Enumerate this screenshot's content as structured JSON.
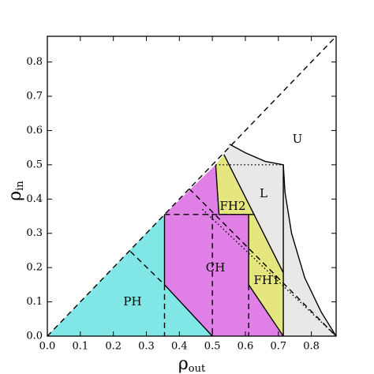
{
  "chart_data": {
    "type": "phase",
    "xlabel": {
      "symbol": "ρ",
      "sub": "out"
    },
    "ylabel": {
      "symbol": "ρ",
      "sub": "in"
    },
    "xlim": [
      0,
      0.875
    ],
    "ylim": [
      0,
      0.875
    ],
    "xticks": [
      {
        "value": 0,
        "label": "0.0"
      },
      0.1,
      0.2,
      0.3,
      0.4,
      0.5,
      0.6,
      0.7,
      0.8
    ],
    "yticks": [
      {
        "value": 0,
        "label": "0.0"
      },
      0.1,
      0.2,
      0.3,
      0.4,
      0.5,
      0.6,
      0.7,
      0.8
    ],
    "regions": [
      {
        "name": "L",
        "color": "#e8e8e8",
        "x": [
          0.535,
          0.552,
          0.6,
          0.66,
          0.715,
          0.72,
          0.74,
          0.78,
          0.83,
          0.875,
          0.715,
          0.715
        ],
        "y": [
          0.53,
          0.56,
          0.535,
          0.51,
          0.5,
          0.42,
          0.3,
          0.17,
          0.07,
          0,
          0,
          0.185
        ]
      },
      {
        "name": "PH",
        "color": "#80e6e6",
        "x": [
          0,
          0.355,
          0.355,
          0.5
        ],
        "y": [
          0,
          0.355,
          0.15,
          0
        ]
      },
      {
        "name": "CH",
        "color": "#e080e6",
        "x": [
          0.355,
          0.51,
          0.52,
          0.61,
          0.61,
          0.715,
          0.5,
          0.355
        ],
        "y": [
          0.355,
          0.5,
          0.355,
          0.355,
          0.15,
          0,
          0,
          0.15
        ]
      },
      {
        "name": "FH2",
        "color": "#e6e680",
        "x": [
          0.51,
          0.535,
          0.628,
          0.52
        ],
        "y": [
          0.5,
          0.53,
          0.355,
          0.355
        ]
      },
      {
        "name": "FH1",
        "color": "#e6e680",
        "x": [
          0.61,
          0.628,
          0.715,
          0.715,
          0.61
        ],
        "y": [
          0.355,
          0.355,
          0.185,
          0,
          0.15
        ]
      }
    ],
    "lines": [
      {
        "style": "dashed",
        "x": [
          0,
          0.875
        ],
        "y": [
          0,
          0.875
        ]
      },
      {
        "style": "dashed",
        "x": [
          0.252,
          0.355
        ],
        "y": [
          0.247,
          0.15
        ]
      },
      {
        "style": "dashed",
        "x": [
          0.355,
          0.61
        ],
        "y": [
          0.355,
          0.355
        ]
      },
      {
        "style": "dashed",
        "x": [
          0.355,
          0.355
        ],
        "y": [
          0.15,
          0
        ]
      },
      {
        "style": "dashed",
        "x": [
          0.5,
          0.5
        ],
        "y": [
          0.355,
          0
        ]
      },
      {
        "style": "dashed",
        "x": [
          0.61,
          0.61
        ],
        "y": [
          0.15,
          0
        ]
      },
      {
        "style": "dashed",
        "x": [
          0.43,
          0.875
        ],
        "y": [
          0.43,
          0
        ]
      },
      {
        "style": "dotted",
        "x": [
          0.51,
          0.715
        ],
        "y": [
          0.5,
          0.5
        ]
      },
      {
        "style": "dotted",
        "x": [
          0.47,
          0.875
        ],
        "y": [
          0.37,
          0
        ]
      },
      {
        "style": "solid",
        "x": [
          0.355,
          0.355,
          0.5
        ],
        "y": [
          0.355,
          0.15,
          0
        ]
      },
      {
        "style": "solid",
        "x": [
          0.51,
          0.52,
          0.628
        ],
        "y": [
          0.5,
          0.355,
          0.355
        ]
      },
      {
        "style": "solid",
        "x": [
          0.61,
          0.61,
          0.715
        ],
        "y": [
          0.355,
          0.15,
          0
        ]
      },
      {
        "style": "solid",
        "x": [
          0.535,
          0.715
        ],
        "y": [
          0.53,
          0.185
        ]
      },
      {
        "style": "solid",
        "x": [
          0.715,
          0.715
        ],
        "y": [
          0.5,
          0
        ]
      },
      {
        "style": "solid",
        "x": [
          0.552,
          0.6,
          0.66,
          0.715,
          0.72,
          0.74,
          0.78,
          0.83,
          0.875
        ],
        "y": [
          0.56,
          0.535,
          0.51,
          0.5,
          0.42,
          0.3,
          0.17,
          0.07,
          0
        ]
      }
    ],
    "annotations": [
      "U"
    ]
  }
}
